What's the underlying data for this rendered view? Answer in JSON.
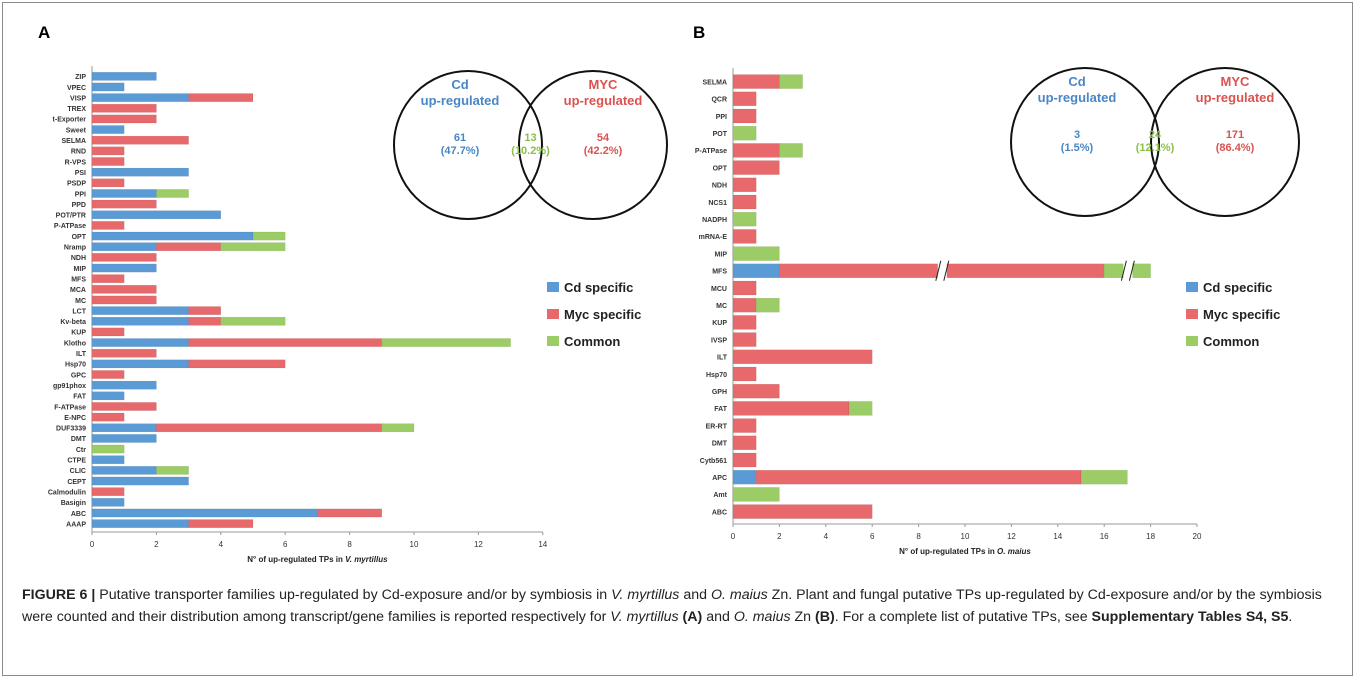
{
  "colors": {
    "cd": "#5b9bd5",
    "myc": "#e8696c",
    "common": "#9ccc65",
    "cd_text": "#4a86c5",
    "myc_text": "#d9534f",
    "common_text": "#8cbf4a",
    "border": "#8a8a8a"
  },
  "legend": {
    "cd": "Cd specific",
    "myc": "Myc specific",
    "common": "Common"
  },
  "chart_data": [
    {
      "panel": "A",
      "type": "bar",
      "orientation": "horizontal",
      "stacked": true,
      "xlabel_pre": "N° of up-regulated TPs in ",
      "xlabel_species": "V. myrtillus",
      "xlim": [
        0,
        14
      ],
      "xticks": [
        0,
        2,
        4,
        6,
        8,
        10,
        12,
        14
      ],
      "legend_position": "right",
      "categories": [
        "ZIP",
        "VPEC",
        "VISP",
        "TREX",
        "t-Exporter",
        "Sweet",
        "SELMA",
        "RND",
        "R-VPS",
        "PSI",
        "PSDP",
        "PPI",
        "PPD",
        "POT/PTR",
        "P-ATPase",
        "OPT",
        "Nramp",
        "NDH",
        "MIP",
        "MFS",
        "MCA",
        "MC",
        "LCT",
        "Kv-beta",
        "KUP",
        "Klotho",
        "ILT",
        "Hsp70",
        "GPC",
        "gp91phox",
        "FAT",
        "F-ATPase",
        "E-NPC",
        "DUF3339",
        "DMT",
        "Ctr",
        "CTPE",
        "CLIC",
        "CEPT",
        "Calmodulin",
        "Basigin",
        "ABC",
        "AAAP"
      ],
      "series": [
        {
          "name": "Cd specific",
          "values": [
            2,
            1,
            3,
            0,
            0,
            1,
            0,
            0,
            0,
            3,
            0,
            2,
            0,
            4,
            0,
            5,
            2,
            0,
            2,
            0,
            0,
            0,
            3,
            3,
            0,
            3,
            0,
            3,
            0,
            2,
            1,
            0,
            0,
            2,
            2,
            0,
            1,
            2,
            3,
            0,
            1,
            7,
            3
          ]
        },
        {
          "name": "Myc specific",
          "values": [
            0,
            0,
            2,
            2,
            2,
            0,
            3,
            1,
            1,
            0,
            1,
            0,
            2,
            0,
            1,
            0,
            2,
            2,
            0,
            1,
            2,
            2,
            1,
            1,
            1,
            6,
            2,
            3,
            1,
            0,
            0,
            2,
            1,
            7,
            0,
            0,
            0,
            0,
            0,
            1,
            0,
            2,
            2
          ]
        },
        {
          "name": "Common",
          "values": [
            0,
            0,
            0,
            0,
            0,
            0,
            0,
            0,
            0,
            0,
            0,
            1,
            0,
            0,
            0,
            1,
            2,
            0,
            0,
            0,
            0,
            0,
            0,
            2,
            0,
            4,
            0,
            0,
            0,
            0,
            0,
            0,
            0,
            1,
            0,
            1,
            0,
            1,
            0,
            0,
            0,
            0,
            0
          ]
        }
      ],
      "venn": {
        "left_label1": "Cd",
        "left_label2": "up-regulated",
        "right_label1": "MYC",
        "right_label2": "up-regulated",
        "left_count": "61",
        "left_pct": "(47.7%)",
        "common_count": "13",
        "common_pct": "(10.2%)",
        "right_count": "54",
        "right_pct": "(42.2%)"
      }
    },
    {
      "panel": "B",
      "type": "bar",
      "orientation": "horizontal",
      "stacked": true,
      "xlabel_pre": "N° of up-regulated TPs in ",
      "xlabel_species": "O. maius",
      "xlim": [
        0,
        20
      ],
      "xticks": [
        0,
        2,
        4,
        6,
        8,
        10,
        12,
        14,
        16,
        18,
        20
      ],
      "legend_position": "right",
      "categories": [
        "SELMA",
        "QCR",
        "PPI",
        "POT",
        "P-ATPase",
        "OPT",
        "NDH",
        "NCS1",
        "NADPH",
        "mRNA-E",
        "MIP",
        "MFS",
        "MCU",
        "MC",
        "KUP",
        "IVSP",
        "ILT",
        "Hsp70",
        "GPH",
        "FAT",
        "ER-RT",
        "DMT",
        "Cytb561",
        "APC",
        "Amt",
        "ABC"
      ],
      "series": [
        {
          "name": "Cd specific",
          "values": [
            0,
            0,
            0,
            0,
            0,
            0,
            0,
            0,
            0,
            0,
            0,
            2,
            0,
            0,
            0,
            0,
            0,
            0,
            0,
            0,
            0,
            0,
            0,
            1,
            0,
            0
          ]
        },
        {
          "name": "Myc specific",
          "values": [
            2,
            1,
            1,
            0,
            2,
            2,
            1,
            1,
            0,
            1,
            0,
            14,
            1,
            1,
            1,
            1,
            6,
            1,
            2,
            5,
            1,
            1,
            1,
            14,
            0,
            6
          ]
        },
        {
          "name": "Common",
          "values": [
            1,
            0,
            0,
            1,
            1,
            0,
            0,
            0,
            1,
            0,
            2,
            2,
            0,
            1,
            0,
            0,
            0,
            0,
            0,
            1,
            0,
            0,
            0,
            2,
            2,
            0
          ]
        }
      ],
      "axis_break_on": "MFS",
      "venn": {
        "left_label1": "Cd",
        "left_label2": "up-regulated",
        "right_label1": "MYC",
        "right_label2": "up-regulated",
        "left_count": "3",
        "left_pct": "(1.5%)",
        "common_count": "24",
        "common_pct": "(12.1%)",
        "right_count": "171",
        "right_pct": "(86.4%)"
      }
    }
  ],
  "caption": {
    "label": "FIGURE 6 |",
    "t1": " Putative transporter families up-regulated by Cd-exposure and/or by symbiosis in ",
    "s1": "V. myrtillus",
    "t2": " and ",
    "s2": "O. maius",
    "t3": " Zn. Plant and fungal putative TPs up-regulated by Cd-exposure and/or by the symbiosis were counted and their distribution among transcript/gene families is reported respectively for ",
    "s3": "V. myrtillus",
    "b1": " (A)",
    "t4": " and ",
    "s4": "O. maius",
    "t5": " Zn ",
    "b2": "(B)",
    "t6": ". For a complete list of putative TPs, see ",
    "b3": "Supplementary Tables S4, S5",
    "t7": "."
  }
}
